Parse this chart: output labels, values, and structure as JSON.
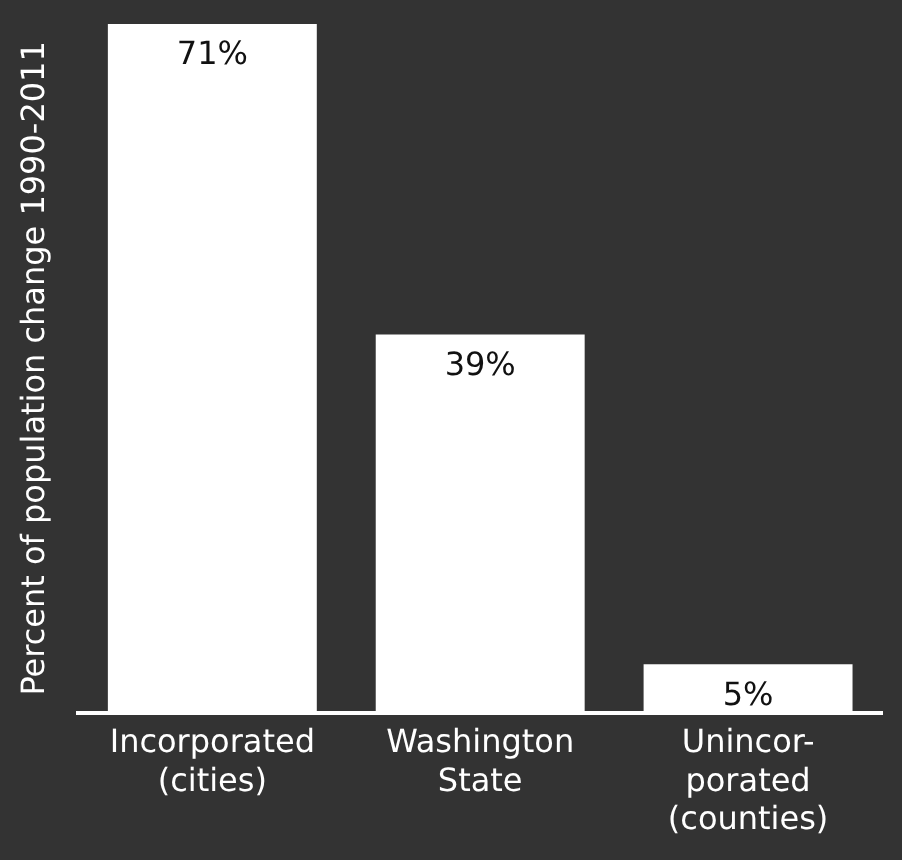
{
  "chart_data": {
    "type": "bar",
    "ylabel": "Percent of population change 1990-2011",
    "categories": [
      "Incorporated\n(cities)",
      "Washington\nState",
      "Unincor-\nporated\n(counties)"
    ],
    "values": [
      71,
      39,
      5
    ],
    "color": "#ffffff",
    "value_labels": [
      "71%",
      "39%",
      "5%"
    ],
    "grid": false,
    "legend": false
  }
}
